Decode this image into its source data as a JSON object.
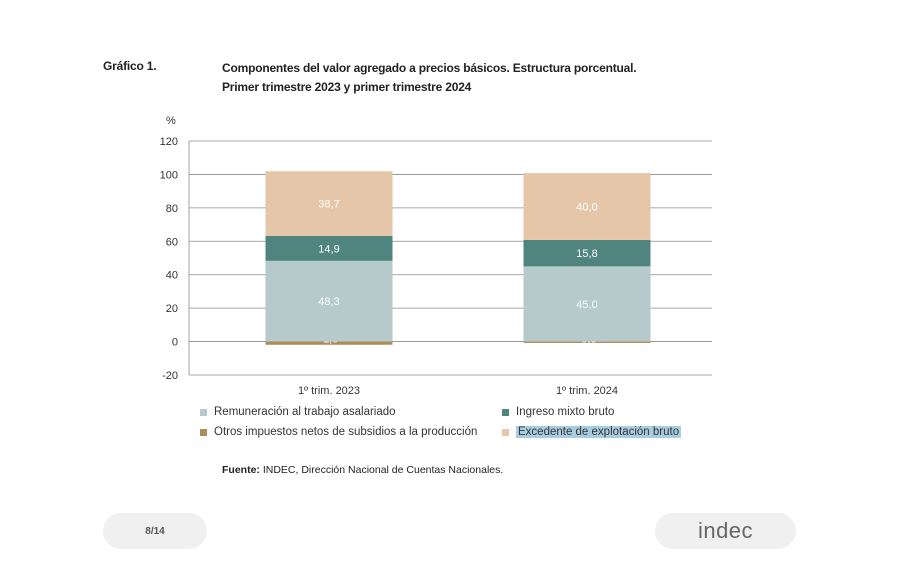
{
  "header": {
    "figure_label": "Gráfico 1.",
    "title_line1": "Componentes del valor agregado a precios básicos. Estructura porcentual.",
    "title_line2": "Primer trimestre 2023 y primer trimestre 2024"
  },
  "chart_data": {
    "type": "bar",
    "stacked": true,
    "ylabel": "%",
    "ylim": [
      -20,
      120
    ],
    "yticks": [
      -20,
      0,
      20,
      40,
      60,
      80,
      100,
      120
    ],
    "grid": true,
    "categories": [
      "1º trim. 2023",
      "1º trim. 2024"
    ],
    "series": [
      {
        "name": "Otros impuestos netos de subsidios a la producción",
        "values": [
          -1.9,
          -0.8
        ],
        "labels": [
          "-1,9",
          "-0,8"
        ],
        "color": "#b08a57"
      },
      {
        "name": "Remuneración al trabajo asalariado",
        "values": [
          48.3,
          45.0
        ],
        "labels": [
          "48,3",
          "45,0"
        ],
        "color": "#b6c9cb"
      },
      {
        "name": "Ingreso mixto bruto",
        "values": [
          14.9,
          15.8
        ],
        "labels": [
          "14,9",
          "15,8"
        ],
        "color": "#4f857e"
      },
      {
        "name": "Excedente de explotación bruto",
        "values": [
          38.7,
          40.0
        ],
        "labels": [
          "38,7",
          "40,0"
        ],
        "color": "#e6c6a8"
      }
    ]
  },
  "legend": {
    "items": [
      {
        "label": "Remuneración al trabajo asalariado",
        "color": "#b6c9cb"
      },
      {
        "label": "Ingreso mixto bruto",
        "color": "#4f857e"
      },
      {
        "label": "Otros impuestos netos de subsidios a la producción",
        "color": "#b08a57"
      },
      {
        "label": "Excedente de explotación bruto",
        "color": "#e6c6a8"
      }
    ]
  },
  "source": {
    "prefix": "Fuente:",
    "text": " INDEC, Dirección Nacional de Cuentas Nacionales."
  },
  "footer": {
    "page": "8/14",
    "logo": "indec"
  }
}
